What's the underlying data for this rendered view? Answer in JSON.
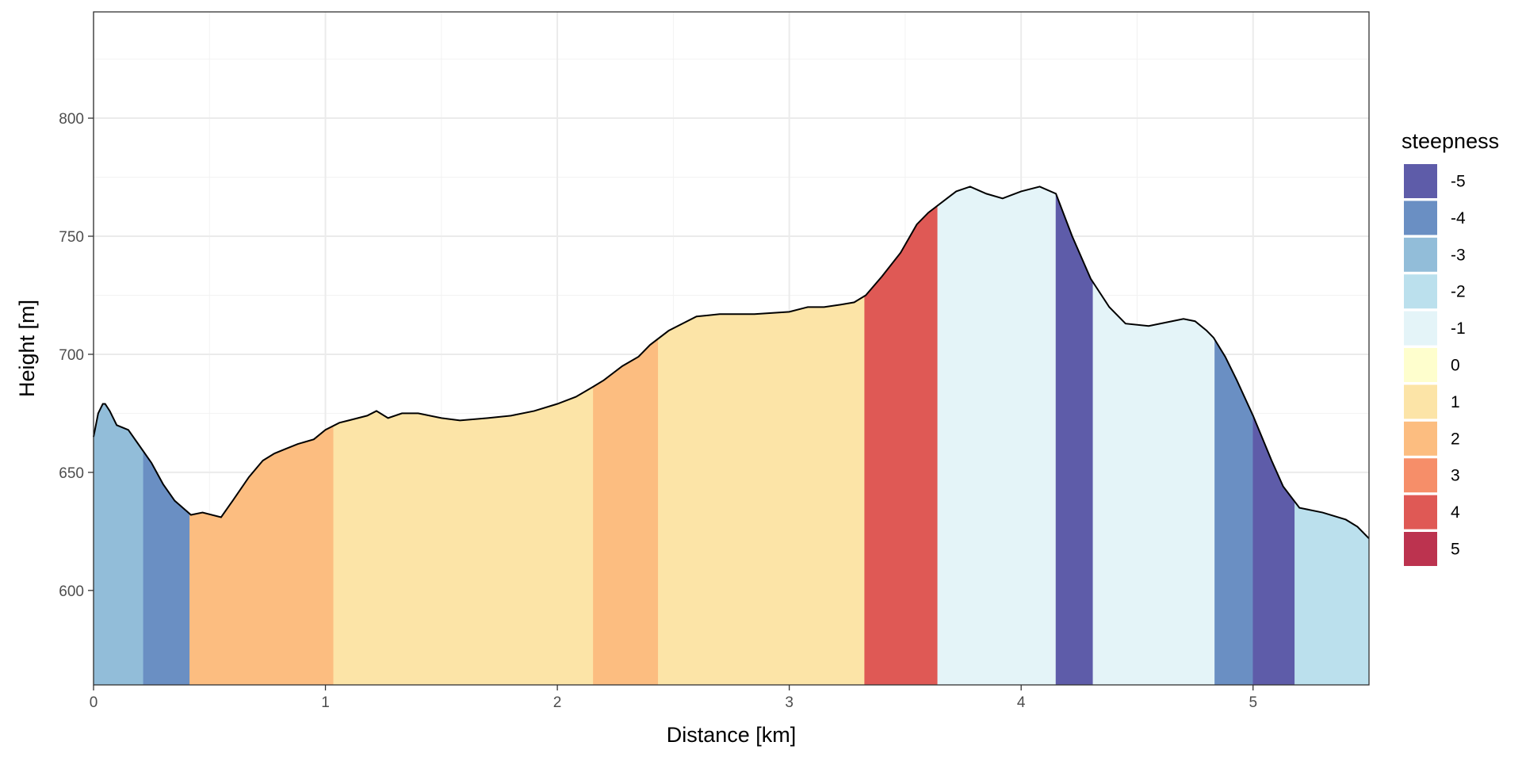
{
  "chart_data": {
    "type": "area",
    "xlabel": "Distance [km]",
    "ylabel": "Height [m]",
    "xlim": [
      0,
      5.5
    ],
    "ylim": [
      560,
      845
    ],
    "x_ticks": [
      0,
      1,
      2,
      3,
      4,
      5
    ],
    "x_tick_labels": [
      "0",
      "1",
      "2",
      "3",
      "4",
      "5"
    ],
    "y_ticks": [
      600,
      650,
      700,
      750,
      800
    ],
    "y_tick_labels": [
      "600",
      "650",
      "700",
      "750",
      "800"
    ],
    "grid": true,
    "legend_position": "right",
    "profile": {
      "x": [
        0,
        0.02,
        0.04,
        0.05,
        0.07,
        0.1,
        0.15,
        0.2,
        0.25,
        0.3,
        0.35,
        0.42,
        0.47,
        0.55,
        0.6,
        0.67,
        0.73,
        0.78,
        0.83,
        0.88,
        0.95,
        1.0,
        1.06,
        1.1,
        1.18,
        1.22,
        1.27,
        1.33,
        1.4,
        1.5,
        1.58,
        1.7,
        1.8,
        1.9,
        2.0,
        2.08,
        2.15,
        2.2,
        2.28,
        2.35,
        2.4,
        2.48,
        2.6,
        2.7,
        2.85,
        3.0,
        3.08,
        3.15,
        3.22,
        3.28,
        3.33,
        3.4,
        3.48,
        3.55,
        3.6,
        3.68,
        3.72,
        3.78,
        3.85,
        3.92,
        4.0,
        4.08,
        4.15,
        4.22,
        4.3,
        4.38,
        4.45,
        4.55,
        4.65,
        4.7,
        4.75,
        4.8,
        4.83,
        4.88,
        4.93,
        5.0,
        5.08,
        5.13,
        5.2,
        5.3,
        5.4,
        5.45,
        5.5
      ],
      "y": [
        665,
        675,
        679,
        679,
        676,
        670,
        668,
        661,
        654,
        645,
        638,
        632,
        633,
        631,
        638,
        648,
        655,
        658,
        660,
        662,
        664,
        668,
        671,
        672,
        674,
        676,
        673,
        675,
        675,
        673,
        672,
        673,
        674,
        676,
        679,
        682,
        686,
        689,
        695,
        699,
        704,
        710,
        716,
        717,
        717,
        718,
        720,
        720,
        721,
        722,
        725,
        733,
        743,
        755,
        760,
        766,
        769,
        771,
        768,
        766,
        769,
        771,
        768,
        750,
        732,
        720,
        713,
        712,
        714,
        715,
        714,
        710,
        707,
        699,
        689,
        674,
        655,
        644,
        635,
        633,
        630,
        627,
        622
      ]
    },
    "segments": [
      {
        "x0": 0.0,
        "x1": 0.215,
        "steepness": -3
      },
      {
        "x0": 0.215,
        "x1": 0.415,
        "steepness": -4
      },
      {
        "x0": 0.415,
        "x1": 1.035,
        "steepness": 2
      },
      {
        "x0": 1.035,
        "x1": 2.155,
        "steepness": 1
      },
      {
        "x0": 2.155,
        "x1": 2.435,
        "steepness": 2
      },
      {
        "x0": 2.435,
        "x1": 3.325,
        "steepness": 1
      },
      {
        "x0": 3.325,
        "x1": 3.64,
        "steepness": 4
      },
      {
        "x0": 3.64,
        "x1": 4.15,
        "steepness": -1
      },
      {
        "x0": 4.15,
        "x1": 4.31,
        "steepness": -5
      },
      {
        "x0": 4.31,
        "x1": 4.835,
        "steepness": -1
      },
      {
        "x0": 4.835,
        "x1": 5.0,
        "steepness": -4
      },
      {
        "x0": 5.0,
        "x1": 5.18,
        "steepness": -5
      },
      {
        "x0": 5.18,
        "x1": 5.5,
        "steepness": -2
      }
    ],
    "legend": {
      "title": "steepness",
      "entries": [
        {
          "label": "-5",
          "value": -5,
          "color": "#5e5ca9"
        },
        {
          "label": "-4",
          "value": -4,
          "color": "#6a8fc3"
        },
        {
          "label": "-3",
          "value": -3,
          "color": "#92bdd9"
        },
        {
          "label": "-2",
          "value": -2,
          "color": "#bbe0ed"
        },
        {
          "label": "-1",
          "value": -1,
          "color": "#e4f4f8"
        },
        {
          "label": "0",
          "value": 0,
          "color": "#fefecd"
        },
        {
          "label": "1",
          "value": 1,
          "color": "#fce4a7"
        },
        {
          "label": "2",
          "value": 2,
          "color": "#fcbd80"
        },
        {
          "label": "3",
          "value": 3,
          "color": "#f68e69"
        },
        {
          "label": "4",
          "value": 4,
          "color": "#df5955"
        },
        {
          "label": "5",
          "value": 5,
          "color": "#bc334f"
        }
      ]
    }
  }
}
